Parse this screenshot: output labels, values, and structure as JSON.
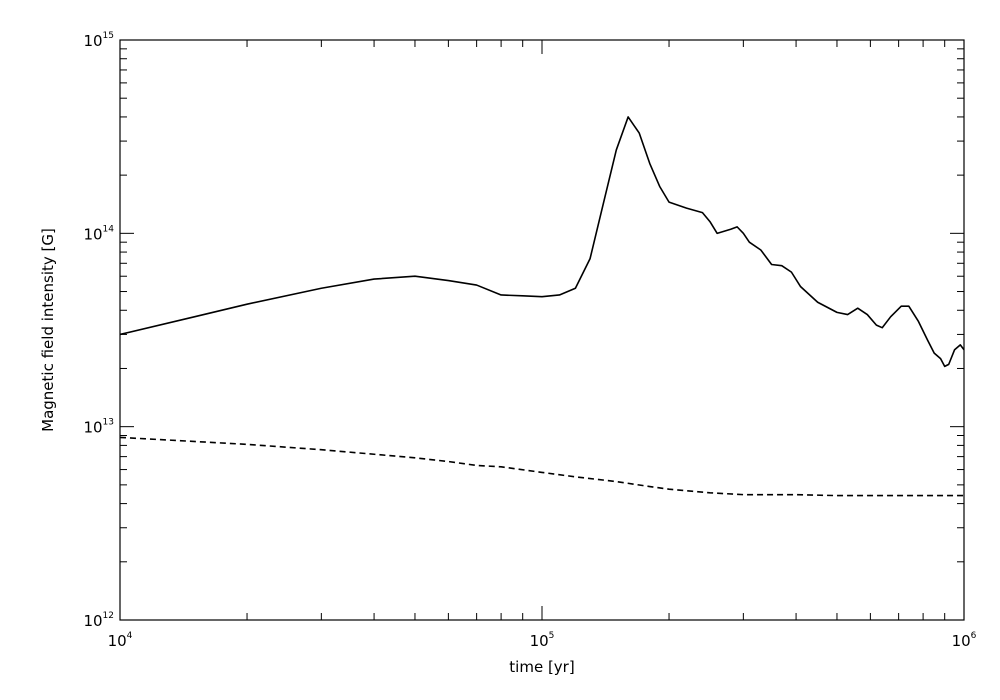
{
  "chart_data": {
    "type": "line",
    "title": "",
    "xlabel": "time [yr]",
    "ylabel": "Magnetic field intensity [G]",
    "xscale": "log",
    "yscale": "log",
    "xlim": [
      10000,
      1000000
    ],
    "ylim": [
      1000000000000.0,
      1000000000000000.0
    ],
    "grid": false,
    "legend": "none",
    "x_ticks": [
      {
        "value": 10000,
        "base": "10",
        "exp": "4"
      },
      {
        "value": 100000,
        "base": "10",
        "exp": "5"
      },
      {
        "value": 1000000,
        "base": "10",
        "exp": "6"
      }
    ],
    "y_ticks": [
      {
        "value": 1000000000000.0,
        "base": "10",
        "exp": "12"
      },
      {
        "value": 10000000000000.0,
        "base": "10",
        "exp": "13"
      },
      {
        "value": 100000000000000.0,
        "base": "10",
        "exp": "14"
      },
      {
        "value": 1000000000000000.0,
        "base": "10",
        "exp": "15"
      }
    ],
    "series": [
      {
        "style": "solid",
        "color": "#000000",
        "points": [
          [
            10000,
            30000000000000.0
          ],
          [
            15000,
            37000000000000.0
          ],
          [
            20000,
            43000000000000.0
          ],
          [
            30000,
            52000000000000.0
          ],
          [
            40000,
            58000000000000.0
          ],
          [
            50000,
            60000000000000.0
          ],
          [
            60000,
            57000000000000.0
          ],
          [
            70000,
            54000000000000.0
          ],
          [
            80000,
            48000000000000.0
          ],
          [
            90000,
            47500000000000.0
          ],
          [
            100000,
            47000000000000.0
          ],
          [
            110000,
            48000000000000.0
          ],
          [
            120000,
            52000000000000.0
          ],
          [
            130000,
            74000000000000.0
          ],
          [
            140000,
            145000000000000.0
          ],
          [
            150000,
            270000000000000.0
          ],
          [
            160000,
            400000000000000.0
          ],
          [
            170000,
            330000000000000.0
          ],
          [
            180000,
            230000000000000.0
          ],
          [
            190000,
            175000000000000.0
          ],
          [
            200000,
            145000000000000.0
          ],
          [
            220000,
            135000000000000.0
          ],
          [
            240000,
            128000000000000.0
          ],
          [
            250000,
            115000000000000.0
          ],
          [
            260000,
            100000000000000.0
          ],
          [
            280000,
            105000000000000.0
          ],
          [
            290000,
            108000000000000.0
          ],
          [
            300000,
            100000000000000.0
          ],
          [
            310000,
            90000000000000.0
          ],
          [
            330000,
            82000000000000.0
          ],
          [
            350000,
            69000000000000.0
          ],
          [
            370000,
            68000000000000.0
          ],
          [
            390000,
            63000000000000.0
          ],
          [
            410000,
            53000000000000.0
          ],
          [
            450000,
            44000000000000.0
          ],
          [
            500000,
            39000000000000.0
          ],
          [
            530000,
            38000000000000.0
          ],
          [
            560000,
            41000000000000.0
          ],
          [
            590000,
            38000000000000.0
          ],
          [
            620000,
            33500000000000.0
          ],
          [
            640000,
            32500000000000.0
          ],
          [
            670000,
            37000000000000.0
          ],
          [
            710000,
            42000000000000.0
          ],
          [
            740000,
            42000000000000.0
          ],
          [
            780000,
            35000000000000.0
          ],
          [
            820000,
            28000000000000.0
          ],
          [
            850000,
            24000000000000.0
          ],
          [
            880000,
            22500000000000.0
          ],
          [
            900000,
            20500000000000.0
          ],
          [
            920000,
            21000000000000.0
          ],
          [
            950000,
            25000000000000.0
          ],
          [
            980000,
            26500000000000.0
          ],
          [
            1000000,
            25000000000000.0
          ]
        ]
      },
      {
        "style": "dashed",
        "color": "#000000",
        "points": [
          [
            10000,
            8800000000000.0
          ],
          [
            20000,
            8100000000000.0
          ],
          [
            30000,
            7600000000000.0
          ],
          [
            40000,
            7200000000000.0
          ],
          [
            50000,
            6900000000000.0
          ],
          [
            60000,
            6600000000000.0
          ],
          [
            70000,
            6300000000000.0
          ],
          [
            80000,
            6200000000000.0
          ],
          [
            100000,
            5800000000000.0
          ],
          [
            120000,
            5500000000000.0
          ],
          [
            150000,
            5200000000000.0
          ],
          [
            180000,
            4900000000000.0
          ],
          [
            200000,
            4750000000000.0
          ],
          [
            250000,
            4550000000000.0
          ],
          [
            300000,
            4450000000000.0
          ],
          [
            400000,
            4450000000000.0
          ],
          [
            500000,
            4400000000000.0
          ],
          [
            700000,
            4400000000000.0
          ],
          [
            1000000,
            4400000000000.0
          ]
        ]
      }
    ]
  }
}
